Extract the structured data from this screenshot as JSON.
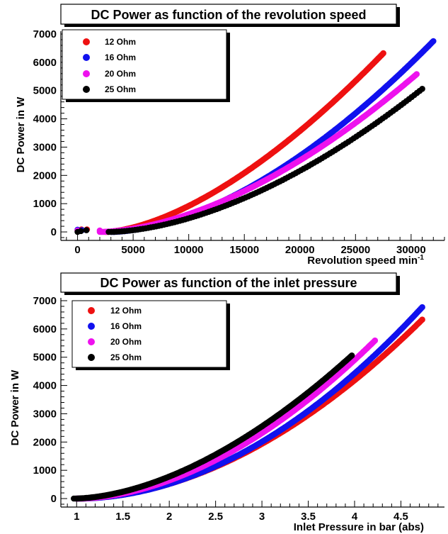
{
  "chart_data": [
    {
      "type": "scatter",
      "title": "DC Power as function of the revolution speed",
      "xlabel": "Revolution speed min",
      "xlabel_superscript": "-1",
      "ylabel": "DC Power in W",
      "xlim": [
        -1500,
        33000
      ],
      "ylim": [
        -300,
        7100
      ],
      "x_ticks": [
        0,
        5000,
        10000,
        15000,
        20000,
        25000,
        30000
      ],
      "x_tick_labels": [
        "0",
        "5000",
        "10000",
        "15000",
        "20000",
        "25000",
        "30000"
      ],
      "y_ticks": [
        0,
        1000,
        2000,
        3000,
        4000,
        5000,
        6000,
        7000
      ],
      "y_tick_labels": [
        "0",
        "1000",
        "2000",
        "3000",
        "4000",
        "5000",
        "6000",
        "7000"
      ],
      "legend_position": "top-left",
      "series": [
        {
          "name": "12 Ohm",
          "color": "#ee1111",
          "x_start": 2500,
          "x_end": 27500,
          "y_end": 6320,
          "exponent": 1.6,
          "count": 230,
          "low_points": [
            [
              0,
              50
            ],
            [
              350,
              90
            ],
            [
              850,
              90
            ]
          ]
        },
        {
          "name": "16 Ohm",
          "color": "#1111ee",
          "x_start": 3000,
          "x_end": 32000,
          "y_end": 6750,
          "exponent": 1.72,
          "count": 260,
          "low_points": [
            [
              0,
              80
            ],
            [
              400,
              60
            ]
          ]
        },
        {
          "name": "20 Ohm",
          "color": "#ee11ee",
          "x_start": 2000,
          "x_end": 30500,
          "y_end": 5580,
          "exponent": 1.72,
          "count": 240,
          "low_points": [
            [
              0,
              50
            ],
            [
              2000,
              50
            ]
          ]
        },
        {
          "name": "25 Ohm",
          "color": "#000000",
          "x_start": 2800,
          "x_end": 31000,
          "y_end": 5060,
          "exponent": 1.72,
          "count": 120,
          "low_points": [
            [
              0,
              0
            ],
            [
              300,
              30
            ],
            [
              800,
              60
            ]
          ]
        }
      ]
    },
    {
      "type": "scatter",
      "title": "DC Power as function of the inlet pressure",
      "xlabel": "Inlet Pressure in bar (abs)",
      "ylabel": "DC Power in W",
      "xlim": [
        0.83,
        4.97
      ],
      "ylim": [
        -300,
        7100
      ],
      "x_ticks": [
        1,
        1.5,
        2,
        2.5,
        3,
        3.5,
        4,
        4.5
      ],
      "x_tick_labels": [
        "1",
        "1.5",
        "2",
        "2.5",
        "3",
        "3.5",
        "4",
        "4.5"
      ],
      "y_ticks": [
        0,
        1000,
        2000,
        3000,
        4000,
        5000,
        6000,
        7000
      ],
      "y_tick_labels": [
        "0",
        "1000",
        "2000",
        "3000",
        "4000",
        "5000",
        "6000",
        "7000"
      ],
      "legend_position": "top-left",
      "series": [
        {
          "name": "12 Ohm",
          "color": "#ee1111",
          "x_start": 1.0,
          "x_end": 4.73,
          "y_end": 6330,
          "exponent": 1.9,
          "count": 260
        },
        {
          "name": "16 Ohm",
          "color": "#1111ee",
          "x_start": 1.0,
          "x_end": 4.73,
          "y_end": 6770,
          "exponent": 1.95,
          "count": 260
        },
        {
          "name": "20 Ohm",
          "color": "#ee11ee",
          "x_start": 1.0,
          "x_end": 4.22,
          "y_end": 5590,
          "exponent": 1.85,
          "count": 230
        },
        {
          "name": "25 Ohm",
          "color": "#000000",
          "x_start": 0.97,
          "x_end": 3.97,
          "y_end": 5060,
          "exponent": 1.75,
          "count": 200
        }
      ]
    }
  ]
}
